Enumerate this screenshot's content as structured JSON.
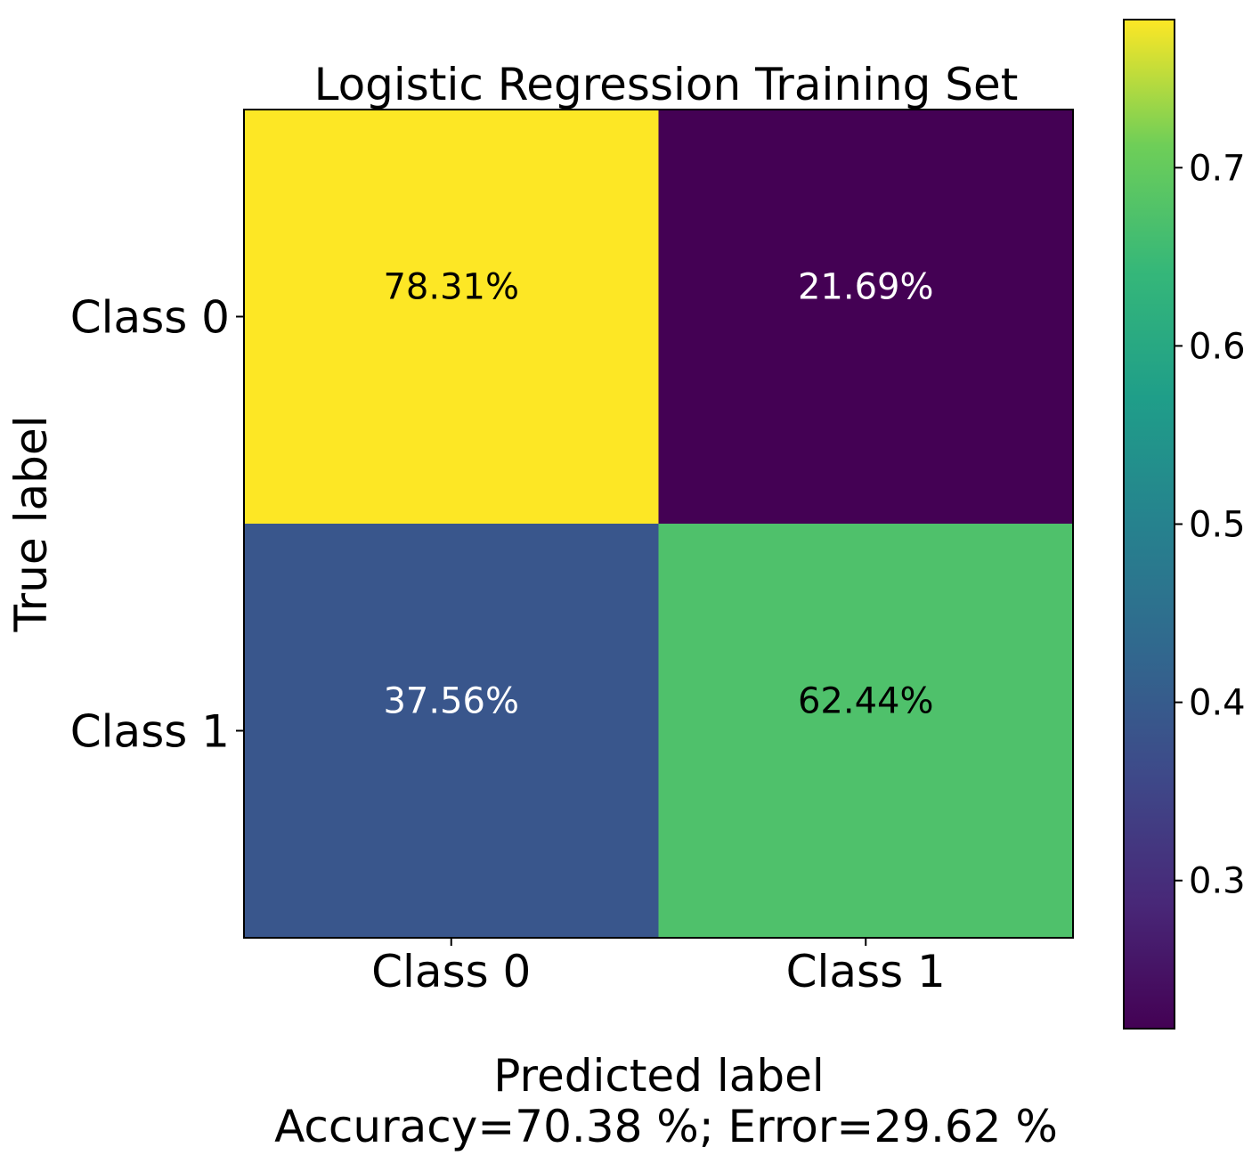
{
  "chart_data": {
    "type": "heatmap",
    "title": "Logistic Regression Training Set",
    "xlabel": "Predicted label",
    "xlabel_note": "Accuracy=70.38 %; Error=29.62 %",
    "ylabel": "True label",
    "x_categories": [
      "Class 0",
      "Class 1"
    ],
    "y_categories": [
      "Class 0",
      "Class 1"
    ],
    "values": [
      [
        0.7831,
        0.2169
      ],
      [
        0.3756,
        0.6244
      ]
    ],
    "cell_labels": [
      [
        "78.31%",
        "21.69%"
      ],
      [
        "37.56%",
        "62.44%"
      ]
    ],
    "cell_colors": [
      [
        "#fde725",
        "#440154"
      ],
      [
        "#39568c",
        "#4fc16b"
      ]
    ],
    "cell_label_colors": [
      [
        "#000000",
        "#ffffff"
      ],
      [
        "#ffffff",
        "#000000"
      ]
    ],
    "colormap": "viridis",
    "colorbar": {
      "min": 0.2169,
      "max": 0.7831,
      "ticks": [
        0.3,
        0.4,
        0.5,
        0.6,
        0.7
      ],
      "tick_labels": [
        "0.3",
        "0.4",
        "0.5",
        "0.6",
        "0.7"
      ]
    }
  }
}
